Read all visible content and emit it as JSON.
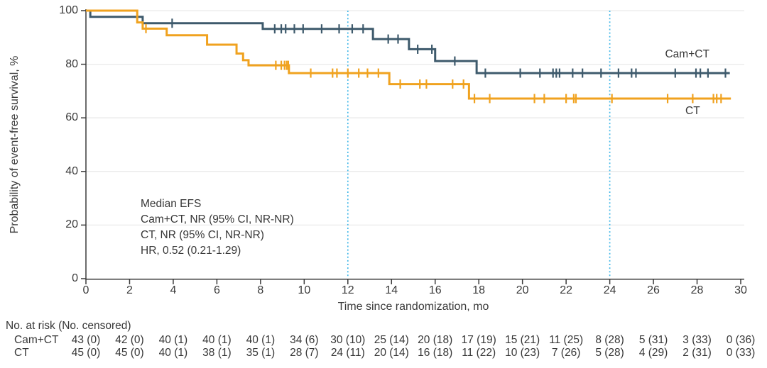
{
  "chart_data": {
    "type": "line",
    "subtype": "kaplan-meier-step",
    "title": "",
    "xlabel": "Time since randomization, mo",
    "ylabel": "Probability of event-free survival, %",
    "xlim": [
      0,
      30
    ],
    "ylim": [
      0,
      100
    ],
    "x_ticks": [
      "0",
      "2",
      "4",
      "6",
      "8",
      "10",
      "12",
      "14",
      "16",
      "18",
      "20",
      "22",
      "24",
      "26",
      "28",
      "30"
    ],
    "x_tick_values": [
      0,
      2,
      4,
      6,
      8,
      10,
      12,
      14,
      16,
      18,
      20,
      22,
      24,
      26,
      28,
      30
    ],
    "y_ticks": [
      "0",
      "20",
      "40",
      "60",
      "80",
      "100"
    ],
    "y_tick_values": [
      0,
      20,
      40,
      60,
      80,
      100
    ],
    "grid": "horizontal-light",
    "gridline_color": "#eaeaea",
    "axis_color": "#3b3b3b",
    "reference_lines_x": [
      12,
      24
    ],
    "reference_line_color": "#44b8e8",
    "legend_position": "inline-labels",
    "series": [
      {
        "name": "Cam+CT",
        "color": "#3e5a6c",
        "steps": [
          [
            0,
            100
          ],
          [
            0.2,
            97.7
          ],
          [
            2.6,
            95.3
          ],
          [
            8.1,
            93.2
          ],
          [
            13.15,
            89.4
          ],
          [
            14.8,
            85.6
          ],
          [
            16.0,
            81.2
          ],
          [
            17.9,
            76.7
          ]
        ],
        "end_x": 29.5,
        "censor_x": [
          3.95,
          8.65,
          8.95,
          9.15,
          9.55,
          9.95,
          10.8,
          11.6,
          12.2,
          12.7,
          13.85,
          14.3,
          15.2,
          15.85,
          16.9,
          18.3,
          19.9,
          20.8,
          21.4,
          21.55,
          21.7,
          22.3,
          22.75,
          23.6,
          24.4,
          25.0,
          25.2,
          27.0,
          27.95,
          28.15,
          28.5,
          29.3
        ],
        "label_x": 27.55,
        "label_y": 83.5
      },
      {
        "name": "CT",
        "color": "#f0a21f",
        "steps": [
          [
            0,
            100
          ],
          [
            2.35,
            95.6
          ],
          [
            2.6,
            93.3
          ],
          [
            3.7,
            90.8
          ],
          [
            5.55,
            87.3
          ],
          [
            6.9,
            84.0
          ],
          [
            7.2,
            81.5
          ],
          [
            7.45,
            79.6
          ],
          [
            9.3,
            76.7
          ],
          [
            13.9,
            72.6
          ],
          [
            17.55,
            67.2
          ]
        ],
        "end_x": 29.55,
        "censor_x": [
          2.75,
          8.7,
          8.95,
          9.1,
          9.2,
          9.27,
          10.3,
          11.3,
          11.5,
          12.0,
          12.5,
          12.9,
          13.4,
          14.4,
          15.3,
          15.6,
          16.8,
          17.3,
          17.8,
          18.5,
          20.55,
          21.0,
          22.0,
          22.35,
          22.45,
          24.1,
          26.65,
          27.8,
          28.75,
          28.9,
          29.1
        ],
        "label_x": 27.8,
        "label_y": 62.5
      }
    ]
  },
  "annotation": {
    "lines": [
      "Median EFS",
      "Cam+CT, NR (95% CI, NR-NR)",
      "CT, NR (95% CI, NR-NR)",
      "HR, 0.52 (0.21-1.29)"
    ]
  },
  "risk_table": {
    "title": "No. at risk (No. censored)",
    "rows": [
      {
        "label": "Cam+CT",
        "values": [
          "43 (0)",
          "42 (0)",
          "40 (1)",
          "40 (1)",
          "40 (1)",
          "34 (6)",
          "30 (10)",
          "25 (14)",
          "20 (18)",
          "17 (19)",
          "15 (21)",
          "11 (25)",
          "8 (28)",
          "5 (31)",
          "3 (33)",
          "0 (36)"
        ]
      },
      {
        "label": "CT",
        "values": [
          "45 (0)",
          "45 (0)",
          "40 (1)",
          "38 (1)",
          "35 (1)",
          "28 (7)",
          "24 (11)",
          "20 (14)",
          "16 (18)",
          "11 (22)",
          "10 (23)",
          "7 (26)",
          "5 (28)",
          "4 (29)",
          "2 (31)",
          "0 (33)"
        ]
      }
    ]
  }
}
